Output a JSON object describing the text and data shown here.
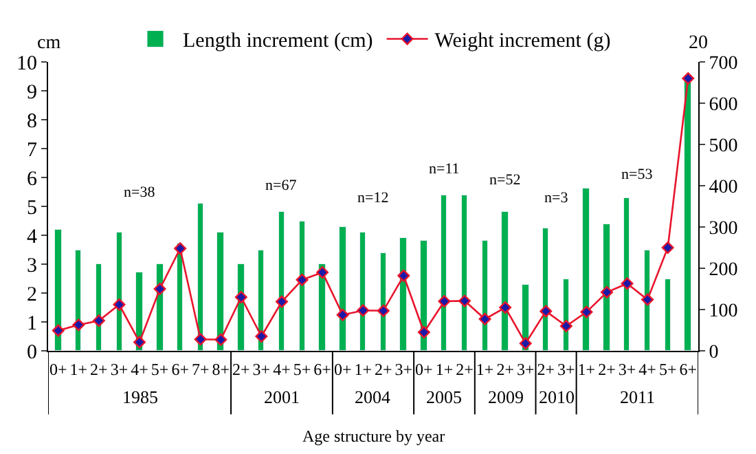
{
  "chart_data": {
    "type": "bar",
    "xlabel": "Age structure by year",
    "ylabel": "cm",
    "y2label": "20",
    "categories": [
      "0+",
      "1+",
      "2+",
      "3+",
      "4+",
      "5+",
      "6+",
      "7+",
      "8+",
      "2+",
      "3+",
      "4+",
      "5+",
      "6+",
      "0+",
      "1+",
      "2+",
      "3+",
      "0+",
      "1+",
      "2+",
      "1+",
      "2+",
      "3+",
      "2+",
      "3+",
      "1+",
      "2+",
      "3+",
      "4+",
      "5+",
      "6+"
    ],
    "series": [
      {
        "name": "Length increment (cm)",
        "color": "#00b050",
        "values": [
          4.2,
          3.5,
          3.0,
          4.1,
          2.7,
          3.0,
          3.7,
          5.1,
          4.1,
          3.0,
          3.5,
          4.8,
          4.5,
          3.0,
          4.3,
          4.1,
          3.4,
          3.9,
          3.8,
          5.4,
          5.4,
          3.8,
          4.8,
          2.3,
          4.25,
          2.5,
          5.6,
          4.4,
          5.3,
          3.5,
          2.5,
          9.4
        ]
      },
      {
        "name": "Weight increment (g)",
        "type": "line",
        "axis": "y2",
        "color": "#e8142c",
        "marker": "diamond",
        "values": [
          49,
          63,
          73,
          112,
          21,
          150,
          248,
          28,
          27,
          130,
          35,
          119,
          172,
          190,
          87,
          98,
          97,
          182,
          45,
          120,
          121,
          77,
          105,
          18,
          96,
          60,
          94,
          142,
          163,
          124,
          250,
          660
        ]
      }
    ],
    "ylim": [
      0,
      10
    ],
    "yticks": [
      0,
      1,
      2,
      3,
      4,
      5,
      6,
      7,
      8,
      9,
      10
    ],
    "y2lim": [
      0,
      700
    ],
    "y2ticks": [
      0,
      100,
      200,
      300,
      400,
      500,
      600,
      700
    ],
    "legend": "top",
    "annotations": [
      "1985",
      "2001",
      "2004",
      "2005",
      "2009",
      "2010",
      "2011",
      "n=38",
      "n=67",
      "n=12",
      "n=11",
      "n=52",
      "n=3",
      "n=53"
    ]
  }
}
